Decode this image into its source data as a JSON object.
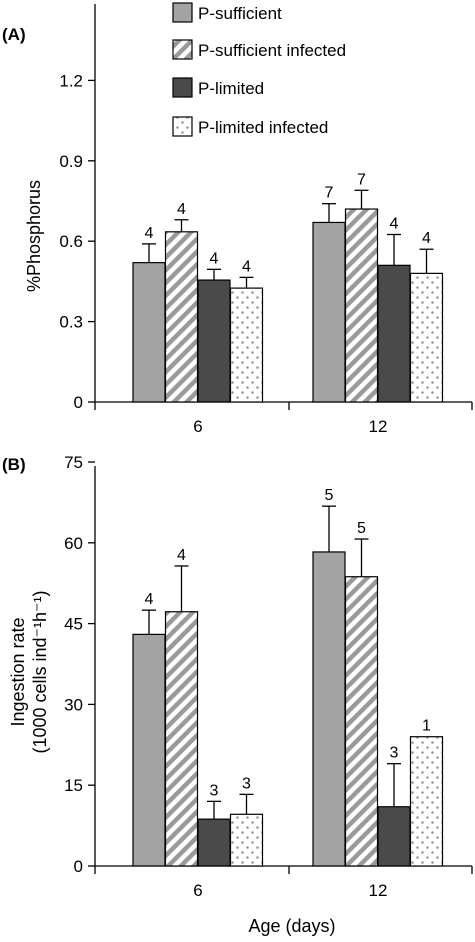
{
  "colors": {
    "p_sufficient": "#a3a3a3",
    "p_sufficient_infected_stripe": "#9a9a9a",
    "p_limited": "#4a4a4a",
    "p_limited_infected_dots": "#9a9a9a"
  },
  "legend": [
    {
      "key": "p_sufficient",
      "label": "P-sufficient",
      "pattern": "solid-gray"
    },
    {
      "key": "p_sufficient_infected",
      "label": "P-sufficient infected",
      "pattern": "diagonal-stripes"
    },
    {
      "key": "p_limited",
      "label": "P-limited",
      "pattern": "solid-dark"
    },
    {
      "key": "p_limited_infected",
      "label": "P-limited infected",
      "pattern": "dots"
    }
  ],
  "xlabel": "Age (days)",
  "chart_data": [
    {
      "type": "bar",
      "panel": "(A)",
      "ylabel": "%Phosphorus",
      "ylim": [
        0,
        1.5
      ],
      "yticks": [
        "0",
        "0.3",
        "0.6",
        "0.9",
        "1.2"
      ],
      "categories": [
        "6",
        "12"
      ],
      "grid": false,
      "legend_position": "top",
      "series": [
        {
          "name": "P-sufficient",
          "values": [
            0.52,
            0.67
          ],
          "errors": [
            0.07,
            0.07
          ],
          "n": [
            "4",
            "7"
          ]
        },
        {
          "name": "P-sufficient infected",
          "values": [
            0.635,
            0.72
          ],
          "errors": [
            0.045,
            0.07
          ],
          "n": [
            "4",
            "7"
          ]
        },
        {
          "name": "P-limited",
          "values": [
            0.455,
            0.51
          ],
          "errors": [
            0.04,
            0.115
          ],
          "n": [
            "4",
            "4"
          ]
        },
        {
          "name": "P-limited infected",
          "values": [
            0.425,
            0.48
          ],
          "errors": [
            0.04,
            0.09
          ],
          "n": [
            "4",
            "4"
          ]
        }
      ]
    },
    {
      "type": "bar",
      "panel": "(B)",
      "ylabel": "Ingestion rate",
      "ylabel2": "(1000 cells ind⁻¹h⁻¹)",
      "ylim": [
        0,
        75
      ],
      "yticks": [
        "0",
        "15",
        "30",
        "45",
        "60",
        "75"
      ],
      "categories": [
        "6",
        "12"
      ],
      "grid": false,
      "series": [
        {
          "name": "P-sufficient",
          "values": [
            43,
            58.3
          ],
          "errors": [
            4.5,
            8.5
          ],
          "n": [
            "4",
            "5"
          ]
        },
        {
          "name": "P-sufficient infected",
          "values": [
            47.2,
            53.7
          ],
          "errors": [
            8.5,
            7.0
          ],
          "n": [
            "4",
            "5"
          ]
        },
        {
          "name": "P-limited",
          "values": [
            8.7,
            11
          ],
          "errors": [
            3.3,
            8.0
          ],
          "n": [
            "3",
            "3"
          ]
        },
        {
          "name": "P-limited infected",
          "values": [
            9.6,
            24
          ],
          "errors": [
            3.7,
            0
          ],
          "n": [
            "3",
            "1"
          ]
        }
      ]
    }
  ]
}
